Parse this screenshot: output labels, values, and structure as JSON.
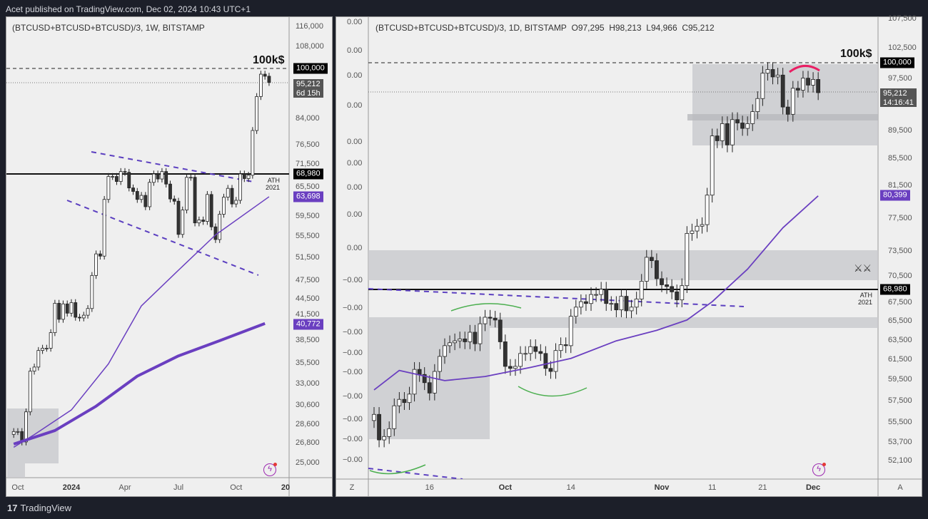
{
  "header": {
    "publisher_line": "Acet published on TradingView.com, Dec 02, 2024 10:43 UTC+1"
  },
  "footer": {
    "brand": "TradingView",
    "logo_mark": "17"
  },
  "colors": {
    "ma": "#6a3fc0",
    "zone": "#c8c9cd",
    "up": "#ffffff",
    "down": "#333333",
    "green": "#4caf50",
    "red": "#e91e63",
    "price_badge": "#555555"
  },
  "chart_data": [
    {
      "type": "candlestick",
      "title": "(BTCUSD+BTCUSD+BTCUSD)/3, 1W, BITSTAMP",
      "timeframe": "1W",
      "scale": "log",
      "first_bar": "2023-09-25",
      "closes": [
        27.9,
        27.9,
        26.9,
        29.9,
        34.5,
        35.0,
        37.1,
        37.4,
        37.4,
        39.5,
        43.8,
        41.4,
        43.7,
        42.3,
        43.9,
        41.7,
        41.6,
        42.0,
        43.0,
        48.3,
        52.1,
        51.7,
        63.1,
        68.4,
        68.4,
        67.2,
        69.6,
        69.4,
        65.7,
        64.9,
        63.1,
        64.0,
        61.5,
        67.0,
        69.0,
        67.8,
        69.6,
        66.6,
        63.2,
        62.7,
        55.8,
        60.8,
        68.2,
        68.2,
        58.1,
        58.7,
        58.4,
        64.2,
        57.3,
        54.8,
        59.9,
        63.6,
        65.6,
        62.1,
        62.9,
        69.0,
        67.9,
        68.7,
        80.4,
        90.6,
        98.0,
        97.3,
        95.2
      ],
      "price_unit": "thousand USD",
      "ma_fast": [
        [
          0,
          26.4
        ],
        [
          5,
          27.6
        ],
        [
          14,
          30.1
        ],
        [
          23,
          35.4
        ],
        [
          31,
          43.4
        ],
        [
          40,
          49.2
        ],
        [
          49,
          55.7
        ],
        [
          62,
          63.7
        ]
      ],
      "ma_slow": [
        [
          0,
          26.7
        ],
        [
          10,
          28.0
        ],
        [
          20,
          30.5
        ],
        [
          30,
          33.9
        ],
        [
          40,
          36.4
        ],
        [
          50,
          38.4
        ],
        [
          61,
          40.8
        ]
      ],
      "y_ticks": [
        "116,000",
        "108,000",
        "84,000",
        "76,500",
        "71,500",
        "65,500",
        "59,500",
        "55,500",
        "51,500",
        "47,500",
        "44,500",
        "41,500",
        "38,500",
        "35,500",
        "33,000",
        "30,600",
        "28,600",
        "26,800",
        "25,000"
      ],
      "x_ticks": [
        {
          "label": "Oct",
          "bold": false,
          "bar": 1
        },
        {
          "label": "2024",
          "bold": true,
          "bar": 14
        },
        {
          "label": "Apr",
          "bold": false,
          "bar": 27
        },
        {
          "label": "Jul",
          "bold": false,
          "bar": 40
        },
        {
          "label": "Oct",
          "bold": false,
          "bar": 54
        },
        {
          "label": "20",
          "bold": true,
          "bar": 66
        }
      ],
      "badges": {
        "level": "100,000",
        "last": "95,212",
        "countdown": "6d 15h",
        "ath": "68,980",
        "ma_fast": "63,698",
        "ma_slow": "40,772"
      },
      "annotations": {
        "target": "100k$",
        "ath_line1": "ATH",
        "ath_line2": "2021"
      }
    },
    {
      "type": "candlestick",
      "title": "(BTCUSD+BTCUSD+BTCUSD)/3, 1D, BITSTAMP",
      "ohlc": {
        "open": "O97,295",
        "high": "H98,213",
        "low": "L94,966",
        "close": "C95,212"
      },
      "timeframe": "1D",
      "scale": "log",
      "first_bar": "2024-09-05",
      "price_unit": "thousand USD",
      "closes": [
        56.2,
        53.9,
        54.2,
        54.9,
        57.0,
        57.6,
        57.3,
        58.1,
        60.5,
        60.0,
        59.2,
        58.2,
        60.3,
        61.8,
        62.9,
        63.2,
        63.4,
        63.6,
        63.3,
        64.3,
        63.1,
        65.2,
        65.9,
        65.8,
        65.6,
        63.3,
        60.8,
        60.6,
        60.8,
        62.1,
        62.1,
        62.8,
        62.3,
        62.1,
        60.6,
        60.3,
        62.4,
        63.0,
        62.9,
        66.0,
        67.0,
        67.6,
        67.4,
        68.4,
        68.4,
        69.0,
        67.4,
        67.4,
        66.7,
        68.2,
        66.6,
        67.0,
        67.9,
        69.9,
        72.7,
        72.3,
        70.2,
        69.5,
        69.3,
        68.7,
        67.8,
        69.4,
        75.6,
        75.9,
        76.5,
        76.7,
        80.5,
        88.7,
        88.0,
        90.5,
        87.4,
        91.1,
        90.6,
        89.8,
        90.5,
        92.3,
        94.3,
        98.3,
        98.9,
        97.7,
        98.0,
        93.0,
        91.9,
        95.9,
        95.6,
        97.5,
        96.4,
        97.3,
        95.212
      ],
      "ma": [
        [
          0,
          58.5
        ],
        [
          5,
          60.4
        ],
        [
          14,
          59.4
        ],
        [
          22,
          59.8
        ],
        [
          31,
          60.7
        ],
        [
          39,
          61.6
        ],
        [
          48,
          63.4
        ],
        [
          56,
          64.5
        ],
        [
          62,
          65.6
        ],
        [
          67,
          67.6
        ],
        [
          74,
          71.3
        ],
        [
          81,
          76.3
        ],
        [
          88,
          80.4
        ]
      ],
      "y_ticks": [
        "107,500",
        "102,500",
        "97,500",
        "89,500",
        "85,500",
        "81,500",
        "77,500",
        "73,500",
        "70,500",
        "67,500",
        "65,500",
        "63,500",
        "61,500",
        "59,500",
        "57,500",
        "55,500",
        "53,700",
        "52,100"
      ],
      "left_scale_ticks": [
        "0.00",
        "0.00",
        "0.00",
        "0.00",
        "0.00",
        "0.00",
        "0.00",
        "0.00",
        "0.00",
        "−0.00",
        "−0.00",
        "−0.00",
        "−0.00",
        "−0.00",
        "−0.00",
        "−0.00",
        "−0.00",
        "−0.00"
      ],
      "x_ticks": [
        {
          "label": "16",
          "bold": false,
          "bar": 11
        },
        {
          "label": "Oct",
          "bold": true,
          "bar": 26
        },
        {
          "label": "14",
          "bold": false,
          "bar": 39
        },
        {
          "label": "Nov",
          "bold": true,
          "bar": 57
        },
        {
          "label": "11",
          "bold": false,
          "bar": 67
        },
        {
          "label": "21",
          "bold": false,
          "bar": 77
        },
        {
          "label": "Dec",
          "bold": true,
          "bar": 87
        }
      ],
      "axis_buttons": {
        "left": "Z",
        "right": "A"
      },
      "badges": {
        "level": "100,000",
        "last": "95,212",
        "countdown": "14:16:41",
        "ath": "68,980",
        "ma": "80,399"
      },
      "annotations": {
        "target": "100k$",
        "ath_line1": "ATH",
        "ath_line2": "2021"
      }
    }
  ]
}
